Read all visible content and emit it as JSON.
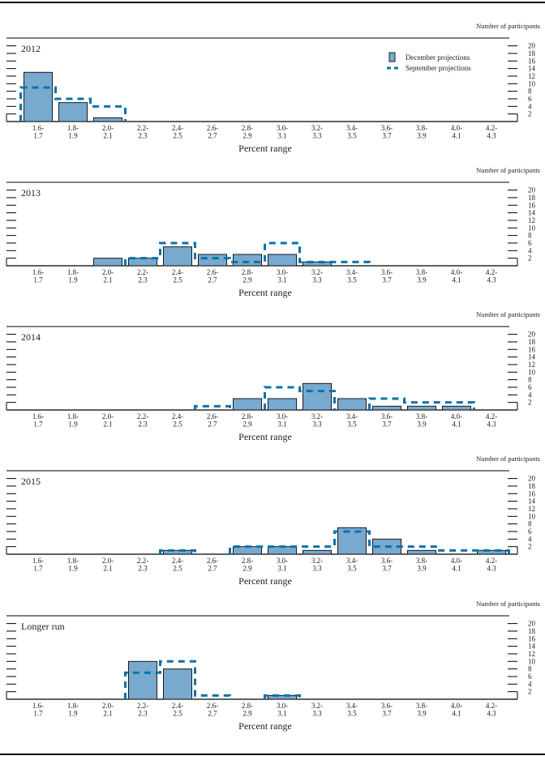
{
  "legend": {
    "december": "December projections",
    "september": "September projections"
  },
  "colors": {
    "bar_fill": "#78a9cf",
    "bar_stroke": "#1a1a1a",
    "september_line": "#0a72aa"
  },
  "chart_data": [
    {
      "type": "bar",
      "title": "2012",
      "xlabel": "Percent range",
      "ylabel": "Number of participants",
      "ylim": [
        0,
        20
      ],
      "yticks": [
        2,
        4,
        6,
        8,
        10,
        12,
        14,
        16,
        18,
        20
      ],
      "legend_position": "top-right",
      "categories": [
        "1.6-1.7",
        "1.8-1.9",
        "2.0-2.1",
        "2.2-2.3",
        "2.4-2.5",
        "2.6-2.7",
        "2.8-2.9",
        "3.0-3.1",
        "3.2-3.3",
        "3.4-3.5",
        "3.6-3.7",
        "3.8-3.9",
        "4.0-4.1",
        "4.2-4.3"
      ],
      "series": [
        {
          "name": "December projections",
          "style": "bar",
          "values": [
            13,
            5,
            1,
            0,
            0,
            0,
            0,
            0,
            0,
            0,
            0,
            0,
            0,
            0
          ]
        },
        {
          "name": "September projections",
          "style": "dashed-step",
          "values": [
            9,
            6,
            4,
            0,
            0,
            0,
            0,
            0,
            0,
            0,
            0,
            0,
            0,
            0
          ]
        }
      ]
    },
    {
      "type": "bar",
      "title": "2013",
      "xlabel": "Percent range",
      "ylabel": "Number of participants",
      "ylim": [
        0,
        20
      ],
      "yticks": [
        2,
        4,
        6,
        8,
        10,
        12,
        14,
        16,
        18,
        20
      ],
      "categories": [
        "1.6-1.7",
        "1.8-1.9",
        "2.0-2.1",
        "2.2-2.3",
        "2.4-2.5",
        "2.6-2.7",
        "2.8-2.9",
        "3.0-3.1",
        "3.2-3.3",
        "3.4-3.5",
        "3.6-3.7",
        "3.8-3.9",
        "4.0-4.1",
        "4.2-4.3"
      ],
      "series": [
        {
          "name": "December projections",
          "style": "bar",
          "values": [
            0,
            0,
            2,
            2,
            5,
            3,
            3,
            3,
            1,
            0,
            0,
            0,
            0,
            0
          ]
        },
        {
          "name": "September projections",
          "style": "dashed-step",
          "values": [
            0,
            0,
            0,
            2,
            6,
            2,
            1,
            6,
            1,
            1,
            0,
            0,
            0,
            0
          ]
        }
      ]
    },
    {
      "type": "bar",
      "title": "2014",
      "xlabel": "Percent range",
      "ylabel": "Number of participants",
      "ylim": [
        0,
        20
      ],
      "yticks": [
        2,
        4,
        6,
        8,
        10,
        12,
        14,
        16,
        18,
        20
      ],
      "categories": [
        "1.6-1.7",
        "1.8-1.9",
        "2.0-2.1",
        "2.2-2.3",
        "2.4-2.5",
        "2.6-2.7",
        "2.8-2.9",
        "3.0-3.1",
        "3.2-3.3",
        "3.4-3.5",
        "3.6-3.7",
        "3.8-3.9",
        "4.0-4.1",
        "4.2-4.3"
      ],
      "series": [
        {
          "name": "December projections",
          "style": "bar",
          "values": [
            0,
            0,
            0,
            0,
            0,
            0,
            3,
            3,
            7,
            3,
            1,
            1,
            1,
            0
          ]
        },
        {
          "name": "September projections",
          "style": "dashed-step",
          "values": [
            0,
            0,
            0,
            0,
            0,
            1,
            0,
            6,
            5,
            0,
            3,
            2,
            2,
            0
          ]
        }
      ]
    },
    {
      "type": "bar",
      "title": "2015",
      "xlabel": "Percent range",
      "ylabel": "Number of participants",
      "ylim": [
        0,
        20
      ],
      "yticks": [
        2,
        4,
        6,
        8,
        10,
        12,
        14,
        16,
        18,
        20
      ],
      "categories": [
        "1.6-1.7",
        "1.8-1.9",
        "2.0-2.1",
        "2.2-2.3",
        "2.4-2.5",
        "2.6-2.7",
        "2.8-2.9",
        "3.0-3.1",
        "3.2-3.3",
        "3.4-3.5",
        "3.6-3.7",
        "3.8-3.9",
        "4.0-4.1",
        "4.2-4.3"
      ],
      "series": [
        {
          "name": "December projections",
          "style": "bar",
          "values": [
            0,
            0,
            0,
            0,
            1,
            0,
            2,
            2,
            1,
            7,
            4,
            1,
            0,
            1
          ]
        },
        {
          "name": "September projections",
          "style": "dashed-step",
          "values": [
            0,
            0,
            0,
            0,
            1,
            0,
            2,
            2,
            2,
            6,
            2,
            2,
            1,
            1
          ]
        }
      ]
    },
    {
      "type": "bar",
      "title": "Longer run",
      "xlabel": "Percent range",
      "ylabel": "Number of participants",
      "ylim": [
        0,
        20
      ],
      "yticks": [
        2,
        4,
        6,
        8,
        10,
        12,
        14,
        16,
        18,
        20
      ],
      "categories": [
        "1.6-1.7",
        "1.8-1.9",
        "2.0-2.1",
        "2.2-2.3",
        "2.4-2.5",
        "2.6-2.7",
        "2.8-2.9",
        "3.0-3.1",
        "3.2-3.3",
        "3.4-3.5",
        "3.6-3.7",
        "3.8-3.9",
        "4.0-4.1",
        "4.2-4.3"
      ],
      "series": [
        {
          "name": "December projections",
          "style": "bar",
          "values": [
            0,
            0,
            0,
            10,
            8,
            0,
            0,
            1,
            0,
            0,
            0,
            0,
            0,
            0
          ]
        },
        {
          "name": "September projections",
          "style": "dashed-step",
          "values": [
            0,
            0,
            0,
            7,
            10,
            1,
            0,
            1,
            0,
            0,
            0,
            0,
            0,
            0
          ]
        }
      ]
    }
  ]
}
